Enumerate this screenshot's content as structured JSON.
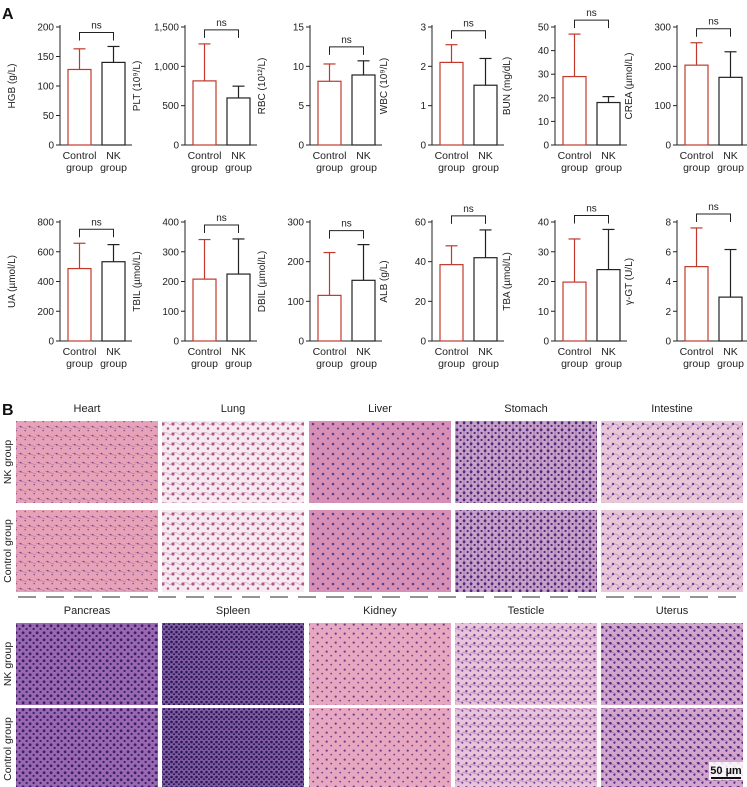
{
  "panel_a_letter": "A",
  "panel_b_letter": "B",
  "significance": "ns",
  "colors": {
    "control": "#c0392b",
    "nk": "#222222",
    "axis": "#222222"
  },
  "chart_data": [
    {
      "type": "bar",
      "ylabel": "HGB (g/L)",
      "ylabel_html": "HGB (g/L)",
      "ylim": [
        0,
        200
      ],
      "yticks": [
        "0",
        "50",
        "100",
        "150",
        "200"
      ],
      "categories": [
        "Control group",
        "NK group"
      ],
      "values": [
        128,
        140
      ],
      "errors": [
        35,
        27
      ]
    },
    {
      "type": "bar",
      "ylabel": "PLT (10⁹/L)",
      "ylim": [
        0,
        1500
      ],
      "yticks": [
        "0",
        "500",
        "1,000",
        "1,500"
      ],
      "categories": [
        "Control group",
        "NK group"
      ],
      "values": [
        815,
        598
      ],
      "errors": [
        470,
        150
      ]
    },
    {
      "type": "bar",
      "ylabel": "RBC (10¹²/L)",
      "ylim": [
        0,
        15
      ],
      "yticks": [
        "0",
        "5",
        "10",
        "15"
      ],
      "categories": [
        "Control group",
        "NK group"
      ],
      "values": [
        8.1,
        8.9
      ],
      "errors": [
        2.2,
        1.8
      ]
    },
    {
      "type": "bar",
      "ylabel": "WBC (10⁹/L)",
      "ylim": [
        0,
        3
      ],
      "yticks": [
        "0",
        "1",
        "2",
        "3"
      ],
      "categories": [
        "Control group",
        "NK group"
      ],
      "values": [
        2.1,
        1.52
      ],
      "errors": [
        0.45,
        0.68
      ]
    },
    {
      "type": "bar",
      "ylabel": "BUN (mg/dL)",
      "ylim": [
        0,
        50
      ],
      "yticks": [
        "0",
        "10",
        "20",
        "30",
        "40",
        "50"
      ],
      "categories": [
        "Control group",
        "NK group"
      ],
      "values": [
        29,
        18
      ],
      "errors": [
        18,
        2.5
      ]
    },
    {
      "type": "bar",
      "ylabel": "CREA (µmol/L)",
      "ylim": [
        0,
        300
      ],
      "yticks": [
        "0",
        "100",
        "200",
        "300"
      ],
      "categories": [
        "Control group",
        "NK group"
      ],
      "values": [
        203,
        172
      ],
      "errors": [
        57,
        65
      ]
    },
    {
      "type": "bar",
      "ylabel": "UA (µmol/L)",
      "ylim": [
        0,
        800
      ],
      "yticks": [
        "0",
        "200",
        "400",
        "600",
        "800"
      ],
      "categories": [
        "Control group",
        "NK group"
      ],
      "values": [
        487,
        533
      ],
      "errors": [
        170,
        115
      ]
    },
    {
      "type": "bar",
      "ylabel": "TBIL (µmol/L)",
      "ylim": [
        0,
        400
      ],
      "yticks": [
        "0",
        "100",
        "200",
        "300",
        "400"
      ],
      "categories": [
        "Control group",
        "NK group"
      ],
      "values": [
        208,
        225
      ],
      "errors": [
        133,
        118
      ]
    },
    {
      "type": "bar",
      "ylabel": "DBIL (µmol/L)",
      "ylim": [
        0,
        300
      ],
      "yticks": [
        "0",
        "100",
        "200",
        "300"
      ],
      "categories": [
        "Control group",
        "NK group"
      ],
      "values": [
        115,
        153
      ],
      "errors": [
        108,
        90
      ]
    },
    {
      "type": "bar",
      "ylabel": "ALB (g/L)",
      "ylim": [
        0,
        60
      ],
      "yticks": [
        "0",
        "20",
        "40",
        "60"
      ],
      "categories": [
        "Control group",
        "NK group"
      ],
      "values": [
        38.5,
        42
      ],
      "errors": [
        9.5,
        14
      ]
    },
    {
      "type": "bar",
      "ylabel": "TBA (µmol/L)",
      "ylim": [
        0,
        40
      ],
      "yticks": [
        "0",
        "10",
        "20",
        "30",
        "40"
      ],
      "categories": [
        "Control group",
        "NK group"
      ],
      "values": [
        19.8,
        24
      ],
      "errors": [
        14.5,
        13.5
      ]
    },
    {
      "type": "bar",
      "ylabel": "γ-GT (U/L)",
      "ylim": [
        0,
        8
      ],
      "yticks": [
        "0",
        "2",
        "4",
        "6",
        "8"
      ],
      "categories": [
        "Control group",
        "NK group"
      ],
      "values": [
        5,
        2.95
      ],
      "errors": [
        2.6,
        3.2
      ]
    }
  ],
  "histology": {
    "row_labels": [
      "NK group",
      "Control group",
      "NK group",
      "Control group"
    ],
    "organs_top": [
      "Heart",
      "Lung",
      "Liver",
      "Stomach",
      "Intestine"
    ],
    "organs_bottom": [
      "Pancreas",
      "Spleen",
      "Kidney",
      "Testicle",
      "Uterus"
    ],
    "scale_bar": "50 µm"
  }
}
